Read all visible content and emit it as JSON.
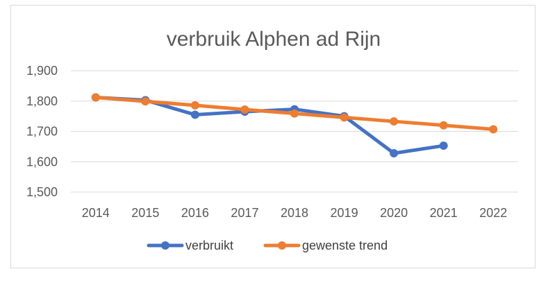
{
  "chart_data": {
    "type": "line",
    "title": "verbruik Alphen ad Rijn",
    "xlabel": "",
    "ylabel": "",
    "categories": [
      "2014",
      "2015",
      "2016",
      "2017",
      "2018",
      "2019",
      "2020",
      "2021",
      "2022"
    ],
    "ylim": [
      1500,
      1900
    ],
    "yticks": [
      1500,
      1600,
      1700,
      1800,
      1900
    ],
    "ytick_labels": [
      "1,500",
      "1,600",
      "1,700",
      "1,800",
      "1,900"
    ],
    "grid": true,
    "legend_position": "bottom",
    "series": [
      {
        "name": "verbruikt",
        "color": "#4472C4",
        "values": [
          1812,
          1803,
          1755,
          1765,
          1773,
          1750,
          1628,
          1653,
          null
        ]
      },
      {
        "name": "gewenste trend",
        "color": "#ED7D31",
        "values": [
          1812,
          1799,
          1786,
          1772,
          1759,
          1746,
          1733,
          1720,
          1707
        ]
      }
    ]
  }
}
